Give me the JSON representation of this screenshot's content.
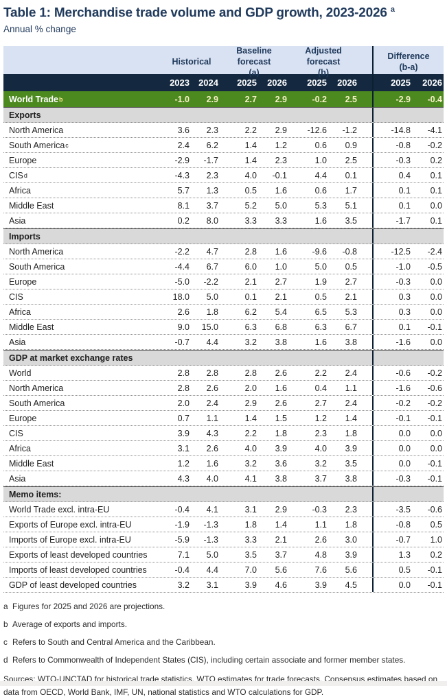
{
  "page": {
    "title": "Table 1: Merchandise trade volume and GDP growth, 2023-2026",
    "title_superscript": "a",
    "subtitle": "Annual % change"
  },
  "colors": {
    "group_band_bg": "#d9e2f2",
    "year_band_bg": "#142940",
    "world_trade_row_bg": "#4c8a1f",
    "world_trade_values_text": "#f7f0c8",
    "world_trade_superscript_text": "#ffe78f",
    "section_header_bg": "#d9d9d9",
    "title_text": "#203a5c",
    "separator_line": "#0d1f33"
  },
  "table": {
    "group_headers": [
      {
        "label": "Historical",
        "sub": ""
      },
      {
        "label": "Baseline forecast",
        "sub": "(a)"
      },
      {
        "label": "Adjusted forecast",
        "sub": "(b)"
      },
      {
        "label": "Difference",
        "sub": "(b-a)"
      }
    ],
    "year_columns": [
      "2023",
      "2024",
      "2025",
      "2026",
      "2025",
      "2026",
      "2025",
      "2026"
    ],
    "world_trade_row": {
      "label": "World Trade",
      "superscript": "b",
      "values": [
        "-1.0",
        "2.9",
        "2.7",
        "2.9",
        "-0.2",
        "2.5",
        "-2.9",
        "-0.4"
      ]
    },
    "sections": [
      {
        "header": "Exports",
        "rows": [
          {
            "label": "North America",
            "superscript": "",
            "values": [
              "3.6",
              "2.3",
              "2.2",
              "2.9",
              "-12.6",
              "-1.2",
              "-14.8",
              "-4.1"
            ]
          },
          {
            "label": "South America",
            "superscript": "c",
            "values": [
              "2.4",
              "6.2",
              "1.4",
              "1.2",
              "0.6",
              "0.9",
              "-0.8",
              "-0.2"
            ]
          },
          {
            "label": "Europe",
            "superscript": "",
            "values": [
              "-2.9",
              "-1.7",
              "1.4",
              "2.3",
              "1.0",
              "2.5",
              "-0.3",
              "0.2"
            ]
          },
          {
            "label": "CIS",
            "superscript": "d",
            "values": [
              "-4.3",
              "2.3",
              "4.0",
              "-0.1",
              "4.4",
              "0.1",
              "0.4",
              "0.1"
            ]
          },
          {
            "label": "Africa",
            "superscript": "",
            "values": [
              "5.7",
              "1.3",
              "0.5",
              "1.6",
              "0.6",
              "1.7",
              "0.1",
              "0.1"
            ]
          },
          {
            "label": "Middle East",
            "superscript": "",
            "values": [
              "8.1",
              "3.7",
              "5.2",
              "5.0",
              "5.3",
              "5.1",
              "0.1",
              "0.0"
            ]
          },
          {
            "label": "Asia",
            "superscript": "",
            "values": [
              "0.2",
              "8.0",
              "3.3",
              "3.3",
              "1.6",
              "3.5",
              "-1.7",
              "0.1"
            ]
          }
        ]
      },
      {
        "header": "Imports",
        "rows": [
          {
            "label": "North America",
            "superscript": "",
            "values": [
              "-2.2",
              "4.7",
              "2.8",
              "1.6",
              "-9.6",
              "-0.8",
              "-12.5",
              "-2.4"
            ]
          },
          {
            "label": "South America",
            "superscript": "",
            "values": [
              "-4.4",
              "6.7",
              "6.0",
              "1.0",
              "5.0",
              "0.5",
              "-1.0",
              "-0.5"
            ]
          },
          {
            "label": "Europe",
            "superscript": "",
            "values": [
              "-5.0",
              "-2.2",
              "2.1",
              "2.7",
              "1.9",
              "2.7",
              "-0.3",
              "0.0"
            ]
          },
          {
            "label": "CIS",
            "superscript": "",
            "values": [
              "18.0",
              "5.0",
              "0.1",
              "2.1",
              "0.5",
              "2.1",
              "0.3",
              "0.0"
            ]
          },
          {
            "label": "Africa",
            "superscript": "",
            "values": [
              "2.6",
              "1.8",
              "6.2",
              "5.4",
              "6.5",
              "5.3",
              "0.3",
              "0.0"
            ]
          },
          {
            "label": "Middle East",
            "superscript": "",
            "values": [
              "9.0",
              "15.0",
              "6.3",
              "6.8",
              "6.3",
              "6.7",
              "0.1",
              "-0.1"
            ]
          },
          {
            "label": "Asia",
            "superscript": "",
            "values": [
              "-0.7",
              "4.4",
              "3.2",
              "3.8",
              "1.6",
              "3.8",
              "-1.6",
              "0.0"
            ]
          }
        ]
      },
      {
        "header": "GDP at market exchange rates",
        "rows": [
          {
            "label": "World",
            "superscript": "",
            "values": [
              "2.8",
              "2.8",
              "2.8",
              "2.6",
              "2.2",
              "2.4",
              "-0.6",
              "-0.2"
            ]
          },
          {
            "label": "North America",
            "superscript": "",
            "values": [
              "2.8",
              "2.6",
              "2.0",
              "1.6",
              "0.4",
              "1.1",
              "-1.6",
              "-0.6"
            ]
          },
          {
            "label": "South America",
            "superscript": "",
            "values": [
              "2.0",
              "2.4",
              "2.9",
              "2.6",
              "2.7",
              "2.4",
              "-0.2",
              "-0.2"
            ]
          },
          {
            "label": "Europe",
            "superscript": "",
            "values": [
              "0.7",
              "1.1",
              "1.4",
              "1.5",
              "1.2",
              "1.4",
              "-0.1",
              "-0.1"
            ]
          },
          {
            "label": "CIS",
            "superscript": "",
            "values": [
              "3.9",
              "4.3",
              "2.2",
              "1.8",
              "2.3",
              "1.8",
              "0.0",
              "0.0"
            ]
          },
          {
            "label": "Africa",
            "superscript": "",
            "values": [
              "3.1",
              "2.6",
              "4.0",
              "3.9",
              "4.0",
              "3.9",
              "0.0",
              "0.0"
            ]
          },
          {
            "label": "Middle East",
            "superscript": "",
            "values": [
              "1.2",
              "1.6",
              "3.2",
              "3.6",
              "3.2",
              "3.5",
              "0.0",
              "-0.1"
            ]
          },
          {
            "label": "Asia",
            "superscript": "",
            "values": [
              "4.3",
              "4.0",
              "4.1",
              "3.8",
              "3.7",
              "3.8",
              "-0.3",
              "-0.1"
            ]
          }
        ]
      },
      {
        "header": "Memo items:",
        "rows": [
          {
            "label": "World Trade excl. intra-EU",
            "superscript": "",
            "values": [
              "-0.4",
              "4.1",
              "3.1",
              "2.9",
              "-0.3",
              "2.3",
              "-3.5",
              "-0.6"
            ]
          },
          {
            "label": "Exports of Europe excl. intra-EU",
            "superscript": "",
            "values": [
              "-1.9",
              "-1.3",
              "1.8",
              "1.4",
              "1.1",
              "1.8",
              "-0.8",
              "0.5"
            ]
          },
          {
            "label": "Imports of Europe excl. intra-EU",
            "superscript": "",
            "values": [
              "-5.9",
              "-1.3",
              "3.3",
              "2.1",
              "2.6",
              "3.0",
              "-0.7",
              "1.0"
            ]
          },
          {
            "label": "Exports of least developed countries",
            "superscript": "",
            "values": [
              "7.1",
              "5.0",
              "3.5",
              "3.7",
              "4.8",
              "3.9",
              "1.3",
              "0.2"
            ]
          },
          {
            "label": "Imports of least developed countries",
            "superscript": "",
            "values": [
              "-0.4",
              "4.4",
              "7.0",
              "5.6",
              "7.6",
              "5.6",
              "0.5",
              "-0.1"
            ]
          },
          {
            "label": "GDP of least developed countries",
            "superscript": "",
            "values": [
              "3.2",
              "3.1",
              "3.9",
              "4.6",
              "3.9",
              "4.5",
              "0.0",
              "-0.1"
            ]
          }
        ]
      }
    ]
  },
  "footnotes": [
    {
      "marker": "a",
      "text": "Figures for 2025 and 2026 are projections."
    },
    {
      "marker": "b",
      "text": "Average of exports and imports."
    },
    {
      "marker": "c",
      "text": "Refers to South and Central America and the Caribbean."
    },
    {
      "marker": "d",
      "text": "Refers to Commonwealth of Independent States (CIS), including certain associate and former member states."
    }
  ],
  "sources": "Sources: WTO-UNCTAD for historical trade statistics. WTO estimates for trade forecasts.  Consensus estimates based on data from OECD, World Bank, IMF, UN, national statistics and WTO calculations for GDP."
}
